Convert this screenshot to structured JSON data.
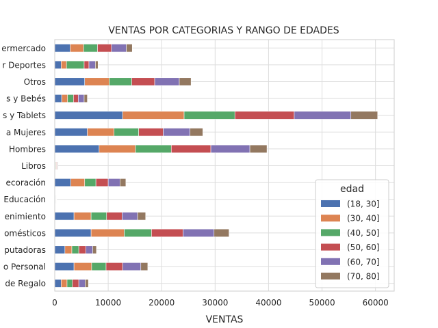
{
  "chart_data": {
    "type": "bar",
    "orientation": "horizontal",
    "stacked": true,
    "title": "VENTAS POR CATEGORIAS Y RANGO DE EDADES",
    "xlabel": "VENTAS",
    "ylabel": "",
    "xlim": [
      0,
      63500
    ],
    "xticks": [
      0,
      10000,
      20000,
      30000,
      40000,
      50000,
      60000
    ],
    "grid": true,
    "legend": {
      "title": "edad",
      "position": "lower-right"
    },
    "categories": [
      "ermercado",
      "r Deportes",
      "Otros",
      "s y Bebés",
      "s y Tablets",
      "a Mujeres",
      "Hombres",
      "Libros",
      "ecoración",
      "Educación",
      "enimiento",
      "omésticos",
      "putadoras",
      "o Personal",
      "de Regalo"
    ],
    "series": [
      {
        "name": "(18, 30]",
        "color": "#4c72b0",
        "values": [
          2900,
          1200,
          5600,
          1300,
          12700,
          6100,
          8300,
          100,
          3000,
          60,
          3600,
          6800,
          1900,
          3600,
          1200
        ]
      },
      {
        "name": "(30, 40]",
        "color": "#dd8452",
        "values": [
          2500,
          1000,
          4600,
          1100,
          11500,
          5000,
          6800,
          100,
          2600,
          60,
          3200,
          6200,
          1300,
          3300,
          1100
        ]
      },
      {
        "name": "(40, 50]",
        "color": "#55a868",
        "values": [
          2600,
          3300,
          4200,
          1100,
          9500,
          4600,
          6700,
          100,
          2100,
          60,
          2900,
          5100,
          1300,
          2700,
          1000
        ]
      },
      {
        "name": "(50, 60]",
        "color": "#c44e52",
        "values": [
          2600,
          900,
          4300,
          900,
          11100,
          4600,
          7400,
          100,
          2300,
          60,
          2900,
          5900,
          1300,
          3100,
          1200
        ]
      },
      {
        "name": "(60, 70]",
        "color": "#8172b3",
        "values": [
          2800,
          1200,
          4600,
          1100,
          10600,
          5000,
          7300,
          100,
          2200,
          60,
          2900,
          5800,
          1300,
          3400,
          1200
        ]
      },
      {
        "name": "(70, 80]",
        "color": "#937860",
        "values": [
          1100,
          500,
          2200,
          600,
          5000,
          2400,
          3200,
          100,
          1100,
          60,
          1500,
          2800,
          700,
          1300,
          600
        ]
      }
    ]
  }
}
